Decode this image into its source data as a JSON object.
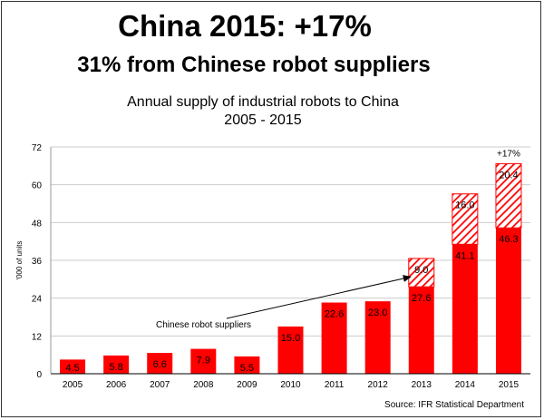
{
  "header": {
    "headline": "China 2015: +17%",
    "subheadline": "31% from Chinese robot suppliers"
  },
  "source": "Source: IFR Statistical Department",
  "chart_data": {
    "type": "bar",
    "stacked": true,
    "title_line1": "Annual supply of industrial robots to China",
    "title_line2": "2005 - 2015",
    "ylabel": "'000 of units",
    "xlabel": "",
    "ylim": [
      0,
      72
    ],
    "yticks": [
      0,
      12,
      24,
      36,
      48,
      60,
      72
    ],
    "grid": true,
    "categories": [
      "2005",
      "2006",
      "2007",
      "2008",
      "2009",
      "2010",
      "2011",
      "2012",
      "2013",
      "2014",
      "2015"
    ],
    "series": [
      {
        "color": "#ff0000",
        "fill": "solid",
        "values": [
          4.5,
          5.8,
          6.6,
          7.9,
          5.5,
          15.0,
          22.6,
          23.0,
          27.6,
          41.1,
          46.3
        ],
        "labels": [
          "4.5",
          "5.8",
          "6.6",
          "7.9",
          "5.5",
          "15.0",
          "22.6",
          "23.0",
          "27.6",
          "41.1",
          "46.3"
        ]
      },
      {
        "name": "Chinese robot suppliers",
        "color": "#ff0000",
        "fill": "hatched",
        "values": [
          0,
          0,
          0,
          0,
          0,
          0,
          0,
          0,
          9.0,
          16.0,
          20.4
        ],
        "labels": [
          "",
          "",
          "",
          "",
          "",
          "",
          "",
          "",
          "9.0",
          "16.0",
          "20.4"
        ]
      }
    ],
    "annotations": [
      {
        "text": "Chinese robot suppliers",
        "points_to": "2013"
      },
      {
        "text": "+17%",
        "above": "2015"
      }
    ]
  }
}
